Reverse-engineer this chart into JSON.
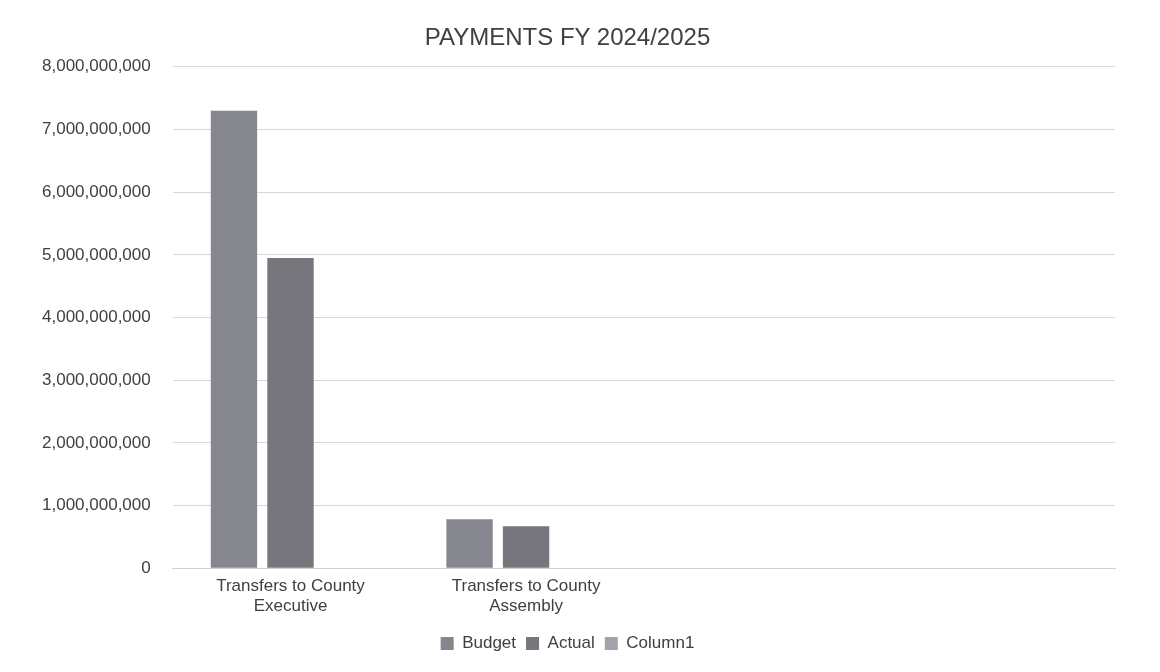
{
  "chart_data": {
    "type": "bar",
    "title": "PAYMENTS FY 2024/2025",
    "categories": [
      "Transfers to County Executive",
      "Transfers to County Assembly",
      null,
      null
    ],
    "series": [
      {
        "name": "Budget",
        "color": "#86868e",
        "values": [
          7300000000,
          780000000,
          null,
          null
        ]
      },
      {
        "name": "Actual",
        "color": "#76767c",
        "values": [
          4950000000,
          670000000,
          null,
          null
        ]
      },
      {
        "name": "Column1",
        "color": "#a2a2aa",
        "values": [
          null,
          null,
          null,
          null
        ]
      }
    ],
    "ylim": [
      0,
      8000000000
    ],
    "yticks": [
      0,
      {
        "value": 1000000000,
        "label": "1,000,000,000"
      },
      {
        "value": 2000000000,
        "label": "2,000,000,000"
      },
      {
        "value": 3000000000,
        "label": "3,000,000,000"
      },
      {
        "value": 4000000000,
        "label": "4,000,000,000"
      },
      {
        "value": 5000000000,
        "label": "5,000,000,000"
      },
      {
        "value": 6000000000,
        "label": "6,000,000,000"
      },
      {
        "value": 7000000000,
        "label": "7,000,000,000"
      },
      {
        "value": 8000000000,
        "label": "8,000,000,000"
      }
    ],
    "grid": "y",
    "legend": "bottom"
  }
}
